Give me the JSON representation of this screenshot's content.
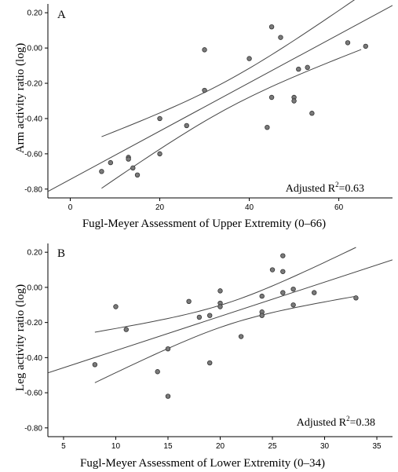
{
  "chart_data": [
    {
      "type": "scatter",
      "panel_label": "A",
      "xlabel": "Fugl-Meyer Assessment of Upper Extremity (0–66)",
      "ylabel": "Arm activity ratio (log)",
      "xlim": [
        -5,
        72
      ],
      "ylim": [
        -0.85,
        0.25
      ],
      "xticks": [
        "0",
        "20",
        "40",
        "60"
      ],
      "yticks": [
        "0.20",
        "0.00",
        "-0.20",
        "-0.40",
        "-0.60",
        "-0.80"
      ],
      "annotation": {
        "prefix": "Adjusted R",
        "sup": "2",
        "suffix": "=0.63"
      },
      "regression": {
        "slope": 0.0137,
        "intercept": -0.745,
        "ci_x": [
          7,
          65
        ]
      },
      "points": [
        {
          "x": 7,
          "y": -0.7
        },
        {
          "x": 9,
          "y": -0.65
        },
        {
          "x": 13,
          "y": -0.62
        },
        {
          "x": 13,
          "y": -0.63
        },
        {
          "x": 14,
          "y": -0.68
        },
        {
          "x": 15,
          "y": -0.72
        },
        {
          "x": 20,
          "y": -0.4
        },
        {
          "x": 20,
          "y": -0.6
        },
        {
          "x": 26,
          "y": -0.44
        },
        {
          "x": 30,
          "y": -0.01
        },
        {
          "x": 30,
          "y": -0.24
        },
        {
          "x": 40,
          "y": -0.06
        },
        {
          "x": 44,
          "y": -0.45
        },
        {
          "x": 45,
          "y": 0.12
        },
        {
          "x": 45,
          "y": -0.28
        },
        {
          "x": 47,
          "y": 0.06
        },
        {
          "x": 50,
          "y": -0.28
        },
        {
          "x": 50,
          "y": -0.3
        },
        {
          "x": 51,
          "y": -0.12
        },
        {
          "x": 53,
          "y": -0.11
        },
        {
          "x": 54,
          "y": -0.37
        },
        {
          "x": 62,
          "y": 0.03
        },
        {
          "x": 66,
          "y": 0.01
        }
      ]
    },
    {
      "type": "scatter",
      "panel_label": "B",
      "xlabel": "Fugl-Meyer Assessment of Lower Extremity (0–34)",
      "ylabel": "Leg activity ratio (log)",
      "xlim": [
        3.5,
        36.5
      ],
      "ylim": [
        -0.85,
        0.25
      ],
      "xticks": [
        "5",
        "10",
        "15",
        "20",
        "25",
        "30",
        "35"
      ],
      "yticks": [
        "0.20",
        "0.00",
        "-0.20",
        "-0.40",
        "-0.60",
        "-0.80"
      ],
      "annotation": {
        "prefix": "Adjusted R",
        "sup": "2",
        "suffix": "=0.38"
      },
      "regression": {
        "slope": 0.0195,
        "intercept": -0.555,
        "ci_x": [
          8,
          33
        ]
      },
      "points": [
        {
          "x": 8,
          "y": -0.44
        },
        {
          "x": 10,
          "y": -0.11
        },
        {
          "x": 11,
          "y": -0.24
        },
        {
          "x": 14,
          "y": -0.48
        },
        {
          "x": 15,
          "y": -0.35
        },
        {
          "x": 15,
          "y": -0.62
        },
        {
          "x": 17,
          "y": -0.08
        },
        {
          "x": 18,
          "y": -0.17
        },
        {
          "x": 19,
          "y": -0.16
        },
        {
          "x": 19,
          "y": -0.43
        },
        {
          "x": 20,
          "y": -0.02
        },
        {
          "x": 20,
          "y": -0.09
        },
        {
          "x": 20,
          "y": -0.11
        },
        {
          "x": 22,
          "y": -0.28
        },
        {
          "x": 24,
          "y": -0.05
        },
        {
          "x": 24,
          "y": -0.14
        },
        {
          "x": 24,
          "y": -0.16
        },
        {
          "x": 25,
          "y": 0.1
        },
        {
          "x": 26,
          "y": 0.18
        },
        {
          "x": 26,
          "y": 0.09
        },
        {
          "x": 26,
          "y": -0.03
        },
        {
          "x": 27,
          "y": -0.01
        },
        {
          "x": 27,
          "y": -0.1
        },
        {
          "x": 29,
          "y": -0.03
        },
        {
          "x": 33,
          "y": -0.06
        }
      ]
    }
  ],
  "colors": {
    "axis": "#000000",
    "marker_fill": "#7a7a7a",
    "marker_stroke": "#333333",
    "line": "#444444"
  }
}
